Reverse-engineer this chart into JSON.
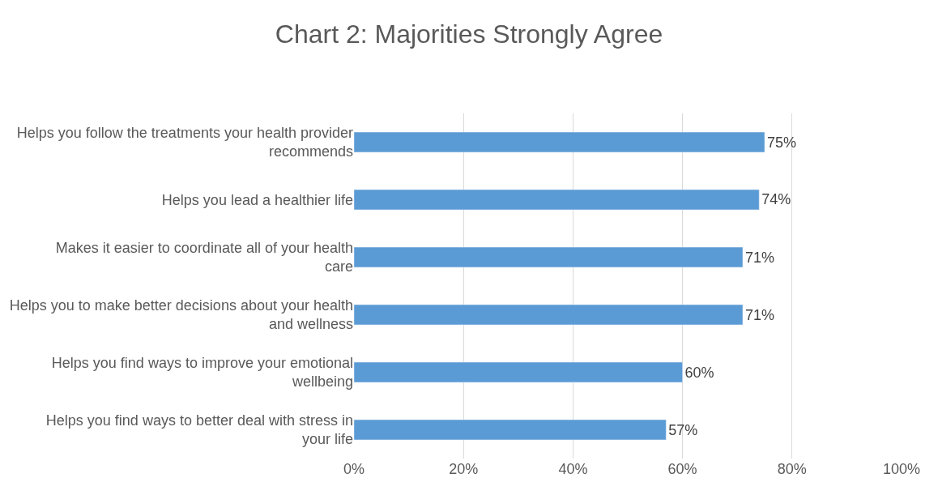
{
  "chart_data": {
    "type": "bar",
    "orientation": "horizontal",
    "title": "Chart 2: Majorities Strongly Agree",
    "categories": [
      "Helps you follow the treatments your health provider recommends",
      "Helps you lead a healthier life",
      "Makes it easier to coordinate all of your health care",
      "Helps you to make better decisions about your health and wellness",
      "Helps you find ways to improve your emotional wellbeing",
      "Helps you find ways to better deal with stress in your life"
    ],
    "values": [
      75,
      74,
      71,
      71,
      60,
      57
    ],
    "value_labels": [
      "75%",
      "74%",
      "71%",
      "71%",
      "60%",
      "57%"
    ],
    "color": "#5b9bd5",
    "xlim": [
      0,
      100
    ],
    "xticks": [
      {
        "value": 0,
        "label": "0%"
      },
      {
        "value": 20,
        "label": "20%"
      },
      {
        "value": 40,
        "label": "40%"
      },
      {
        "value": 60,
        "label": "60%"
      },
      {
        "value": 80,
        "label": "80%"
      },
      {
        "value": 100,
        "label": "100%"
      }
    ],
    "grid": "x",
    "legend": false
  }
}
